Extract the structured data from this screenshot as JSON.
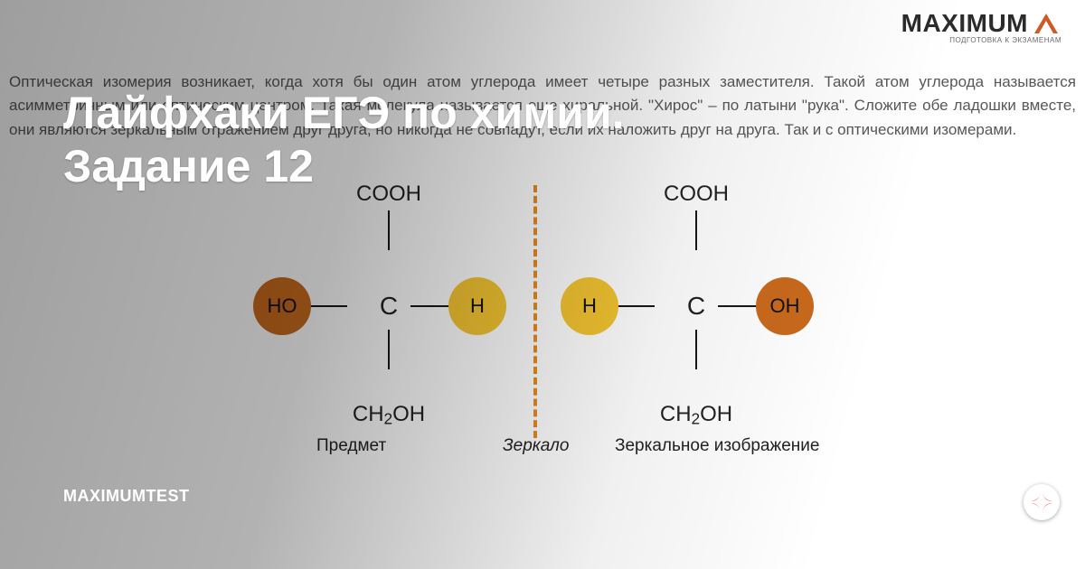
{
  "brand": {
    "name": "MAXIMUM",
    "tagline": "ПОДГОТОВКА К ЭКЗАМЕНАМ",
    "accent_color": "#cf5a24"
  },
  "background_paragraph": "Оптическая изомерия возникает, когда хотя бы один атом углерода имеет четыре разных заместителя. Такой атом углерода называется асимметричным или оптическим центром. Такая молекула называется еще хиральной. \"Хирос\" – по латыни \"рука\". Сложите обе ладошки вместе, они являются зеркальным отражением друг друга, но никогда не совпадут, если их наложить друг на друга. Так и с оптическими изомерами.",
  "headline_line1": "Лайфхаки ЕГЭ по химии.",
  "headline_line2": "Задание 12",
  "source_label": "MAXIMUMTEST",
  "diagram": {
    "type": "chemistry-mirror-diagram",
    "mirror_line_color": "#ea8a1f",
    "label_object": "Предмет",
    "label_mirror": "Зеркало",
    "label_image": "Зеркальное изображение",
    "bond_color": "#171717",
    "left_molecule": {
      "top": "COOH",
      "center": "C",
      "bottom_html": "CH<sub>2</sub>OH",
      "left_group": {
        "text": "HO",
        "circle_color": "#c96a1d"
      },
      "right_group": {
        "text": "H",
        "circle_color": "#f4c531"
      }
    },
    "right_molecule": {
      "top": "COOH",
      "center": "C",
      "bottom_html": "CH<sub>2</sub>OH",
      "left_group": {
        "text": "H",
        "circle_color": "#f4c531"
      },
      "right_group": {
        "text": "OH",
        "circle_color": "#c96a1d"
      }
    }
  },
  "zen_logo_color": "#ff2a2a"
}
